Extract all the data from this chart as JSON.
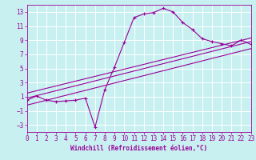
{
  "xlabel": "Windchill (Refroidissement éolien,°C)",
  "bg_color": "#c8f0f0",
  "line_color": "#990099",
  "grid_color": "#ffffff",
  "x_ticks": [
    0,
    1,
    2,
    3,
    4,
    5,
    6,
    7,
    8,
    9,
    10,
    11,
    12,
    13,
    14,
    15,
    16,
    17,
    18,
    19,
    20,
    21,
    22,
    23
  ],
  "y_ticks": [
    -3,
    -1,
    1,
    3,
    5,
    7,
    9,
    11,
    13
  ],
  "xlim": [
    0,
    23
  ],
  "ylim": [
    -4,
    14
  ],
  "main_line_x": [
    0,
    1,
    2,
    3,
    4,
    5,
    6,
    7,
    8,
    9,
    10,
    11,
    12,
    13,
    14,
    15,
    16,
    17,
    18,
    19,
    20,
    21,
    22,
    23
  ],
  "main_line_y": [
    0.5,
    1.1,
    0.5,
    0.3,
    0.4,
    0.5,
    0.8,
    -3.3,
    2.0,
    5.2,
    8.7,
    12.2,
    12.7,
    12.9,
    13.5,
    13.0,
    11.5,
    10.5,
    9.2,
    8.8,
    8.5,
    8.2,
    9.0,
    8.4
  ],
  "line2_x": [
    0,
    23
  ],
  "line2_y": [
    0.8,
    8.8
  ],
  "line3_x": [
    0,
    23
  ],
  "line3_y": [
    1.5,
    9.3
  ],
  "line4_x": [
    0,
    23
  ],
  "line4_y": [
    -0.2,
    7.8
  ],
  "spine_color": "#990099",
  "label_fontsize": 5.5,
  "tick_fontsize": 5.5,
  "xlabel_fontsize": 5.5
}
